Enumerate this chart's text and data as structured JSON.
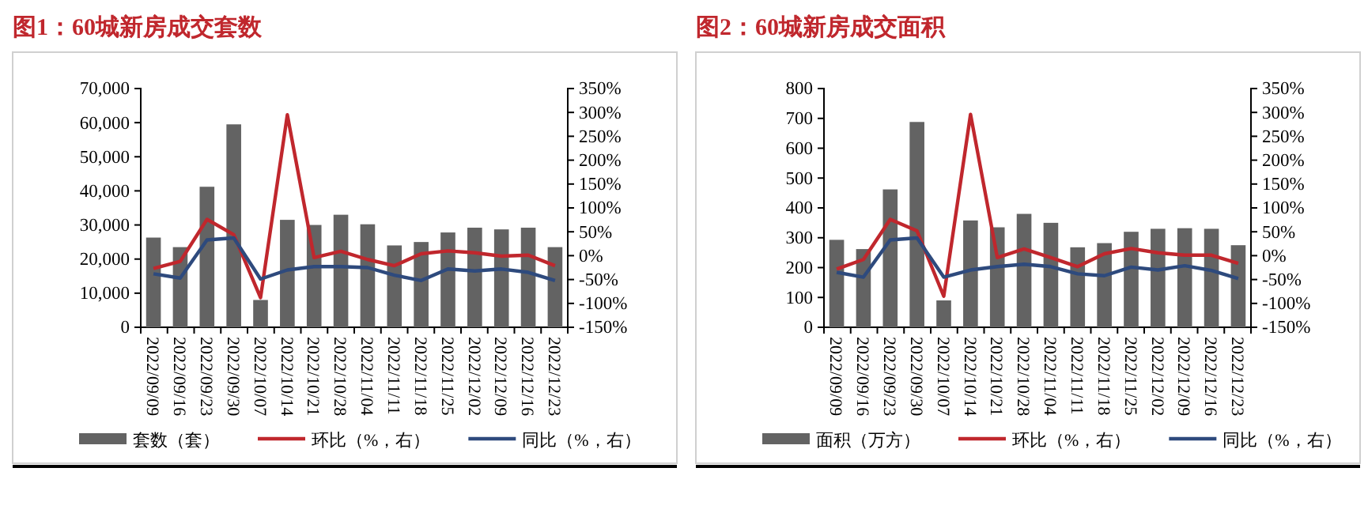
{
  "chart_data": [
    {
      "type": "bar",
      "title": "图1：60城新房成交套数",
      "categories": [
        "2022/09/09",
        "2022/09/16",
        "2022/09/23",
        "2022/09/30",
        "2022/10/07",
        "2022/10/14",
        "2022/10/21",
        "2022/10/28",
        "2022/11/04",
        "2022/11/11",
        "2022/11/18",
        "2022/11/25",
        "2022/12/02",
        "2022/12/09",
        "2022/12/16",
        "2022/12/23"
      ],
      "series": [
        {
          "name": "套数（套）",
          "type": "bar",
          "color": "#636363",
          "values": [
            26300,
            23500,
            41200,
            59500,
            8000,
            31500,
            30000,
            33000,
            30200,
            24000,
            25000,
            27800,
            29200,
            28700,
            29200,
            23500
          ]
        },
        {
          "name": "环比（%，右）",
          "type": "line",
          "axis": "y2",
          "color": "#c0272d",
          "values": [
            -27,
            -12,
            76,
            44,
            -88,
            295,
            -4,
            9,
            -8,
            -21,
            4,
            10,
            6,
            -1,
            1,
            -21
          ]
        },
        {
          "name": "同比（%，右）",
          "type": "line",
          "axis": "y2",
          "color": "#2e4a7d",
          "values": [
            -38,
            -47,
            33,
            37,
            -49,
            -30,
            -23,
            -23,
            -25,
            -41,
            -52,
            -28,
            -32,
            -28,
            -35,
            -52
          ]
        }
      ],
      "ylim": [
        0,
        70000
      ],
      "yticks": [
        0,
        {
          "value": 10000,
          "label": "10,000"
        },
        {
          "value": 20000,
          "label": "20,000"
        },
        {
          "value": 30000,
          "label": "30,000"
        },
        {
          "value": 40000,
          "label": "40,000"
        },
        {
          "value": 50000,
          "label": "50,000"
        },
        {
          "value": 60000,
          "label": "60,000"
        },
        {
          "value": 70000,
          "label": "70,000"
        }
      ],
      "y2lim": [
        -150,
        350
      ],
      "y2ticks": [
        {
          "value": -150,
          "label": "-150%"
        },
        {
          "value": -100,
          "label": "-100%"
        },
        {
          "value": -50,
          "label": "-50%"
        },
        {
          "value": 0,
          "label": "0%"
        },
        {
          "value": 50,
          "label": "50%"
        },
        {
          "value": 100,
          "label": "100%"
        },
        {
          "value": 150,
          "label": "150%"
        },
        {
          "value": 200,
          "label": "200%"
        },
        {
          "value": 250,
          "label": "250%"
        },
        {
          "value": 300,
          "label": "300%"
        },
        {
          "value": 350,
          "label": "350%"
        }
      ],
      "legend": "bottom",
      "grid": false
    },
    {
      "type": "bar",
      "title": "图2：60城新房成交面积",
      "categories": [
        "2022/09/09",
        "2022/09/16",
        "2022/09/23",
        "2022/09/30",
        "2022/10/07",
        "2022/10/14",
        "2022/10/21",
        "2022/10/28",
        "2022/11/04",
        "2022/11/11",
        "2022/11/18",
        "2022/11/25",
        "2022/12/02",
        "2022/12/09",
        "2022/12/16",
        "2022/12/23"
      ],
      "series": [
        {
          "name": "面积（万方）",
          "type": "bar",
          "color": "#636363",
          "values": [
            293,
            262,
            462,
            688,
            90,
            358,
            335,
            380,
            350,
            268,
            282,
            320,
            330,
            332,
            330,
            275
          ]
        },
        {
          "name": "环比（%，右）",
          "type": "line",
          "axis": "y2",
          "color": "#c0272d",
          "values": [
            -28,
            -8,
            76,
            52,
            -85,
            296,
            -4,
            14,
            -4,
            -23,
            4,
            15,
            6,
            1,
            1,
            -16
          ]
        },
        {
          "name": "同比（%，右）",
          "type": "line",
          "axis": "y2",
          "color": "#2e4a7d",
          "values": [
            -35,
            -45,
            33,
            37,
            -45,
            -30,
            -23,
            -18,
            -23,
            -38,
            -42,
            -24,
            -30,
            -21,
            -31,
            -48
          ]
        }
      ],
      "ylim": [
        0,
        800
      ],
      "yticks": [
        0,
        100,
        200,
        300,
        400,
        500,
        600,
        700,
        800
      ],
      "y2lim": [
        -150,
        350
      ],
      "y2ticks": [
        {
          "value": -150,
          "label": "-150%"
        },
        {
          "value": -100,
          "label": "-100%"
        },
        {
          "value": -50,
          "label": "-50%"
        },
        {
          "value": 0,
          "label": "0%"
        },
        {
          "value": 50,
          "label": "50%"
        },
        {
          "value": 100,
          "label": "100%"
        },
        {
          "value": 150,
          "label": "150%"
        },
        {
          "value": 200,
          "label": "200%"
        },
        {
          "value": 250,
          "label": "250%"
        },
        {
          "value": 300,
          "label": "300%"
        },
        {
          "value": 350,
          "label": "350%"
        }
      ],
      "legend": "bottom",
      "grid": false
    }
  ]
}
